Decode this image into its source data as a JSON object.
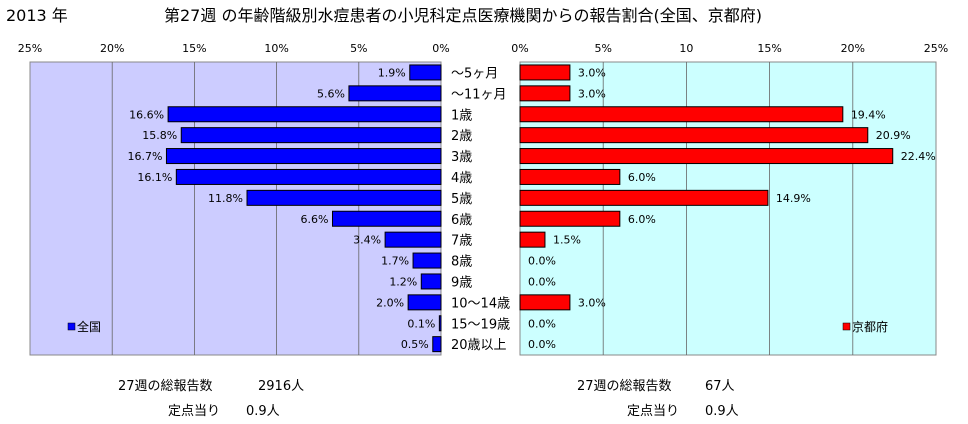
{
  "header": {
    "year": "2013 年",
    "title": "第27週 の年齢階級別水痘患者の小児科定点医療機関からの報告割合(全国、京都府)"
  },
  "chart_data": {
    "type": "bar",
    "orientation": "horizontal",
    "categories": [
      "〜5ヶ月",
      "〜11ヶ月",
      "1歳",
      "2歳",
      "3歳",
      "4歳",
      "5歳",
      "6歳",
      "7歳",
      "8歳",
      "9歳",
      "10〜14歳",
      "15〜19歳",
      "20歳以上"
    ],
    "series": [
      {
        "name": "全国",
        "color": "#0000ff",
        "values": [
          1.9,
          5.6,
          16.6,
          15.8,
          16.7,
          16.1,
          11.8,
          6.6,
          3.4,
          1.7,
          1.2,
          2.0,
          0.1,
          0.5
        ],
        "labels": [
          "1.9%",
          "5.6%",
          "16.6%",
          "15.8%",
          "16.7%",
          "16.1%",
          "11.8%",
          "6.6%",
          "3.4%",
          "1.7%",
          "1.2%",
          "2.0%",
          "0.1%",
          "0.5%"
        ],
        "xlim": [
          0,
          25
        ],
        "direction": "leftward",
        "ticks": [
          "0%",
          "5%",
          "10%",
          "15%",
          "20%",
          "25%"
        ],
        "background": "#ccccff",
        "legend_position": "bottom-left"
      },
      {
        "name": "京都府",
        "color": "#ff0000",
        "values": [
          3.0,
          3.0,
          19.4,
          20.9,
          22.4,
          6.0,
          14.9,
          6.0,
          1.5,
          0.0,
          0.0,
          3.0,
          0.0,
          0.0
        ],
        "labels": [
          "3.0%",
          "3.0%",
          "19.4%",
          "20.9%",
          "22.4%",
          "6.0%",
          "14.9%",
          "6.0%",
          "1.5%",
          "0.0%",
          "0.0%",
          "3.0%",
          "0.0%",
          "0.0%"
        ],
        "xlim": [
          0,
          25
        ],
        "direction": "rightward",
        "ticks": [
          "0%",
          "5%",
          "10",
          "15%",
          "20%",
          "25%"
        ],
        "background": "#ccffff",
        "legend_position": "bottom-right"
      }
    ],
    "grid": true
  },
  "footer": {
    "left": {
      "total_label": "27週の総報告数",
      "total_value": "2916人",
      "per_label": "定点当り",
      "per_value": "0.9人"
    },
    "right": {
      "total_label": "27週の総報告数",
      "total_value": "67人",
      "per_label": "定点当り",
      "per_value": "0.9人"
    }
  }
}
